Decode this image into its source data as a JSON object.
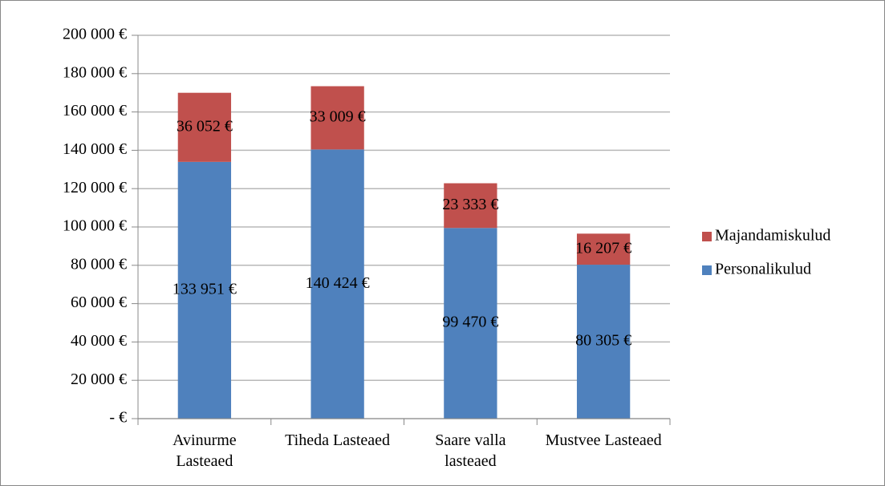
{
  "chart_data": {
    "type": "stacked_bar",
    "categories": [
      "Avinurme Lasteaed",
      "Tiheda Lasteaed",
      "Saare valla lasteaed",
      "Mustvee Lasteaed"
    ],
    "series": [
      {
        "name": "Personalikulud",
        "color": "#4f81bd",
        "values": [
          133951,
          140424,
          99470,
          80305
        ],
        "value_labels": [
          "133 951 €",
          "140 424 €",
          "99 470 €",
          "80 305 €"
        ]
      },
      {
        "name": "Majandamiskulud",
        "color": "#c0504d",
        "values": [
          36052,
          33009,
          23333,
          16207
        ],
        "value_labels": [
          "36 052 €",
          "33 009 €",
          "23 333 €",
          "16 207 €"
        ]
      }
    ],
    "ylim": [
      0,
      200000
    ],
    "yticks": [
      {
        "value": 0,
        "label": "-  €"
      },
      {
        "value": 20000,
        "label": "20 000 €"
      },
      {
        "value": 40000,
        "label": "40 000 €"
      },
      {
        "value": 60000,
        "label": "60 000 €"
      },
      {
        "value": 80000,
        "label": "80 000 €"
      },
      {
        "value": 100000,
        "label": "100 000 €"
      },
      {
        "value": 120000,
        "label": "120 000 €"
      },
      {
        "value": 140000,
        "label": "140 000 €"
      },
      {
        "value": 160000,
        "label": "160 000 €"
      },
      {
        "value": 180000,
        "label": "180 000 €"
      },
      {
        "value": 200000,
        "label": "200 000 €"
      }
    ],
    "grid": true,
    "legend": "right"
  }
}
